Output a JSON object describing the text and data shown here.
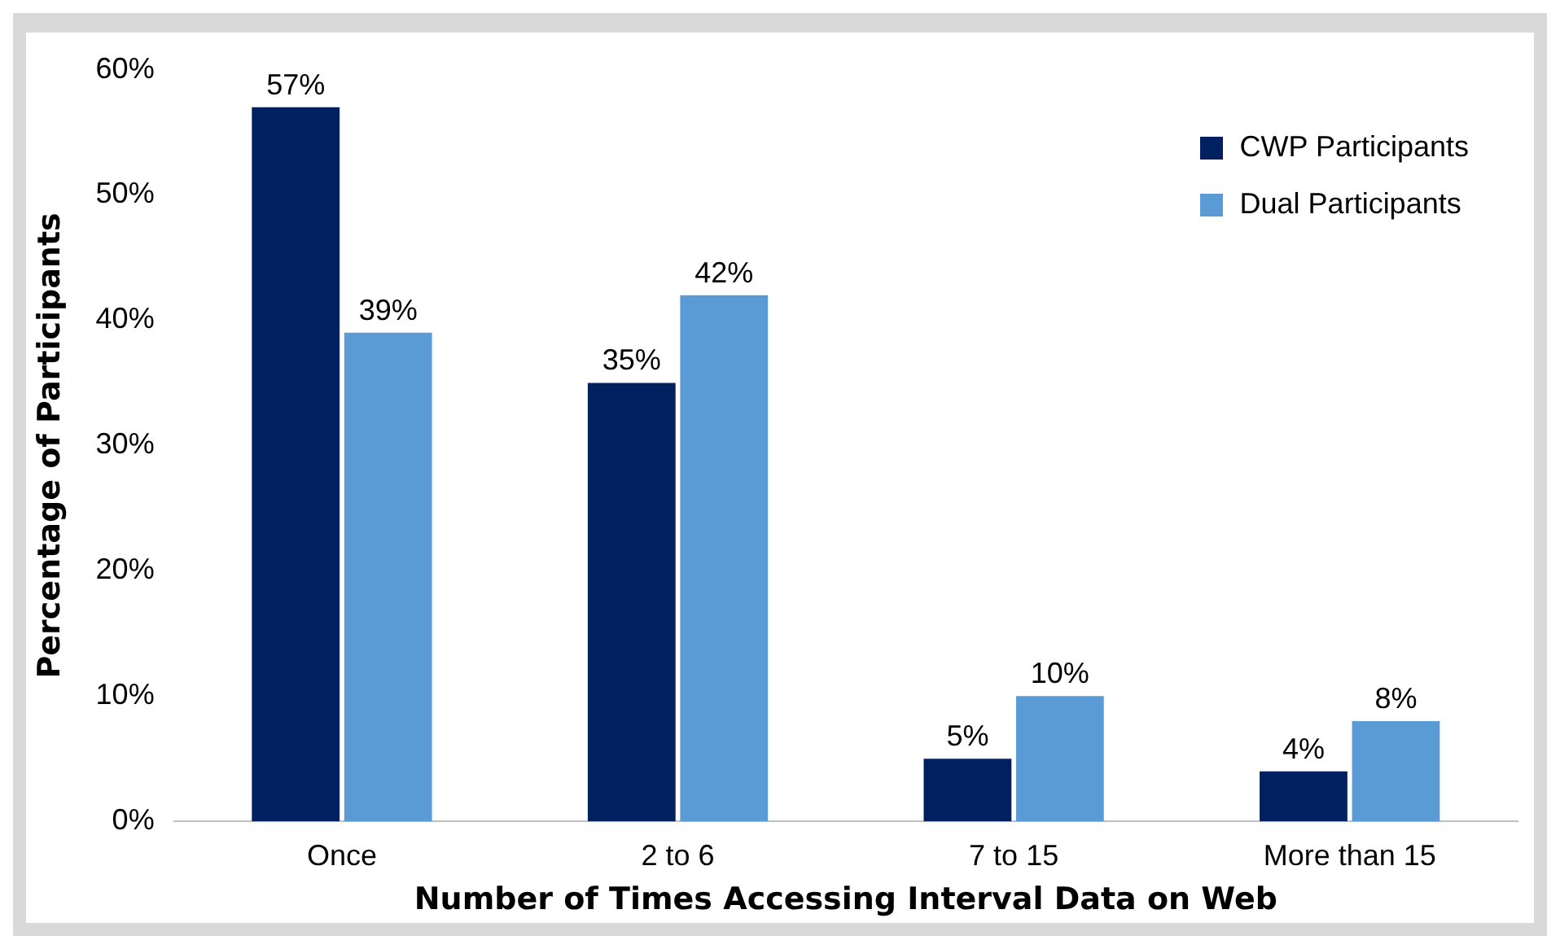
{
  "chart_data": {
    "type": "bar",
    "xlabel": "Number of Times Accessing Interval Data on Web",
    "ylabel": "Percentage of Participants",
    "categories": [
      "Once",
      "2 to 6",
      "7 to 15",
      "More than 15"
    ],
    "series": [
      {
        "name": "CWP Participants",
        "color": "#002060",
        "values": [
          57,
          35,
          5,
          4
        ],
        "value_labels": [
          "57%",
          "35%",
          "5%",
          "4%"
        ]
      },
      {
        "name": "Dual Participants",
        "color": "#5b9bd5",
        "values": [
          39,
          42,
          10,
          8
        ],
        "value_labels": [
          "39%",
          "42%",
          "10%",
          "8%"
        ]
      }
    ],
    "ylim": [
      0,
      60
    ],
    "yticks": [
      {
        "value": 0,
        "label": "0%"
      },
      {
        "value": 10,
        "label": "10%"
      },
      {
        "value": 20,
        "label": "20%"
      },
      {
        "value": 30,
        "label": "30%"
      },
      {
        "value": 40,
        "label": "40%"
      },
      {
        "value": 50,
        "label": "50%"
      },
      {
        "value": 60,
        "label": "60%"
      }
    ],
    "grid": false,
    "legend": "top right"
  }
}
